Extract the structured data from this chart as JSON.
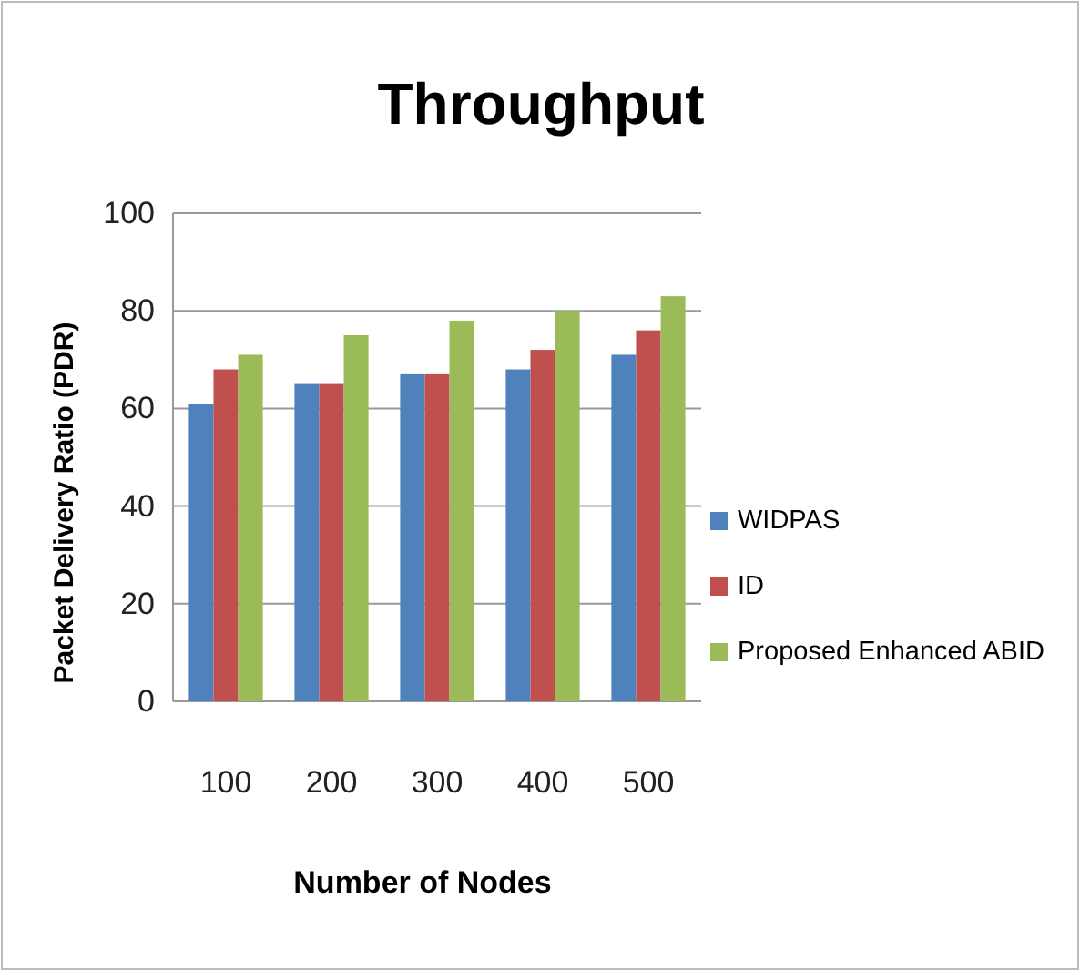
{
  "chart_data": {
    "type": "bar",
    "title": "Throughput",
    "xlabel": "Number of Nodes",
    "ylabel": "Packet Delivery Ratio (PDR)",
    "categories": [
      "100",
      "200",
      "300",
      "400",
      "500"
    ],
    "series": [
      {
        "name": "WIDPAS",
        "color": "#4f81bd",
        "values": [
          61,
          65,
          67,
          68,
          71
        ]
      },
      {
        "name": "ID",
        "color": "#c0504d",
        "values": [
          68,
          65,
          67,
          72,
          76
        ]
      },
      {
        "name": "Proposed Enhanced ABID",
        "color": "#9bbb59",
        "values": [
          71,
          75,
          78,
          80,
          83
        ]
      }
    ],
    "ylim": [
      0,
      100
    ],
    "yticks": [
      0,
      20,
      40,
      60,
      80,
      100
    ],
    "grid": "y",
    "legend": "right"
  }
}
